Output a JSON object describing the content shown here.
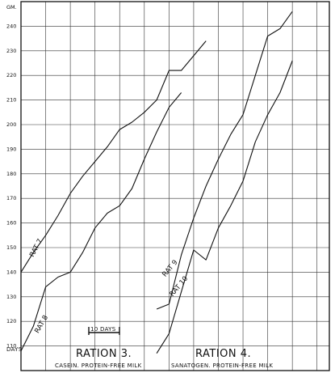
{
  "chart_data": {
    "type": "line",
    "ylabel": "GM.",
    "ylim": [
      100,
      250
    ],
    "xlim": [
      0,
      25
    ],
    "yticks": [
      110,
      120,
      130,
      140,
      150,
      160,
      170,
      180,
      190,
      200,
      210,
      220,
      230,
      240
    ],
    "ytick_labels": [
      "110",
      "120",
      "130",
      "140",
      "150",
      "160",
      "170",
      "180",
      "190",
      "200",
      "210",
      "220",
      "230",
      "240"
    ],
    "x_axis_label": "DAYS",
    "grid": true,
    "scale_bar_label": "10 DAYS",
    "ration3": {
      "title": "RATION 3.",
      "subtitle": "CASEIN. PROTEIN-FREE MILK"
    },
    "ration4": {
      "title": "RATION 4.",
      "subtitle": "SANATOGEN. PROTEIN-FREE MILK"
    },
    "series": [
      {
        "name": "RAT 7",
        "label_pos": {
          "x": 1.0,
          "y": 146
        },
        "label_angle": -62,
        "values": [
          [
            0,
            140
          ],
          [
            1,
            148
          ],
          [
            2,
            155
          ],
          [
            3,
            163
          ],
          [
            4,
            172
          ],
          [
            5,
            179
          ],
          [
            6,
            185
          ],
          [
            7,
            191
          ],
          [
            8,
            198
          ],
          [
            9,
            201
          ],
          [
            10,
            205
          ],
          [
            11,
            210
          ],
          [
            12,
            222
          ],
          [
            13,
            222
          ],
          [
            14,
            228
          ],
          [
            15,
            234
          ]
        ]
      },
      {
        "name": "RAT 8",
        "label_pos": {
          "x": 1.4,
          "y": 115
        },
        "label_angle": -60,
        "values": [
          [
            0,
            108
          ],
          [
            1,
            118
          ],
          [
            2,
            134
          ],
          [
            3,
            138
          ],
          [
            4,
            140
          ],
          [
            5,
            148
          ],
          [
            6,
            158
          ],
          [
            7,
            164
          ],
          [
            8,
            167
          ],
          [
            9,
            174
          ],
          [
            10,
            186
          ],
          [
            11,
            197
          ],
          [
            12,
            207
          ],
          [
            13,
            213
          ]
        ]
      },
      {
        "name": "RAT 9",
        "label_pos": {
          "x": 11.7,
          "y": 138
        },
        "label_angle": -50,
        "values": [
          [
            11,
            125
          ],
          [
            12,
            127
          ],
          [
            13,
            147
          ],
          [
            14,
            162
          ],
          [
            15,
            175
          ],
          [
            16,
            186
          ],
          [
            17,
            196
          ],
          [
            18,
            204
          ],
          [
            19,
            220
          ],
          [
            20,
            236
          ],
          [
            21,
            239
          ],
          [
            22,
            246
          ]
        ]
      },
      {
        "name": "RAT 10",
        "label_pos": {
          "x": 12.3,
          "y": 130
        },
        "label_angle": -50,
        "values": [
          [
            11,
            107
          ],
          [
            12,
            115
          ],
          [
            13,
            132
          ],
          [
            14,
            149
          ],
          [
            15,
            145
          ],
          [
            16,
            158
          ],
          [
            17,
            167
          ],
          [
            18,
            177
          ],
          [
            19,
            193
          ],
          [
            20,
            204
          ],
          [
            21,
            213
          ],
          [
            22,
            226
          ]
        ]
      }
    ]
  }
}
